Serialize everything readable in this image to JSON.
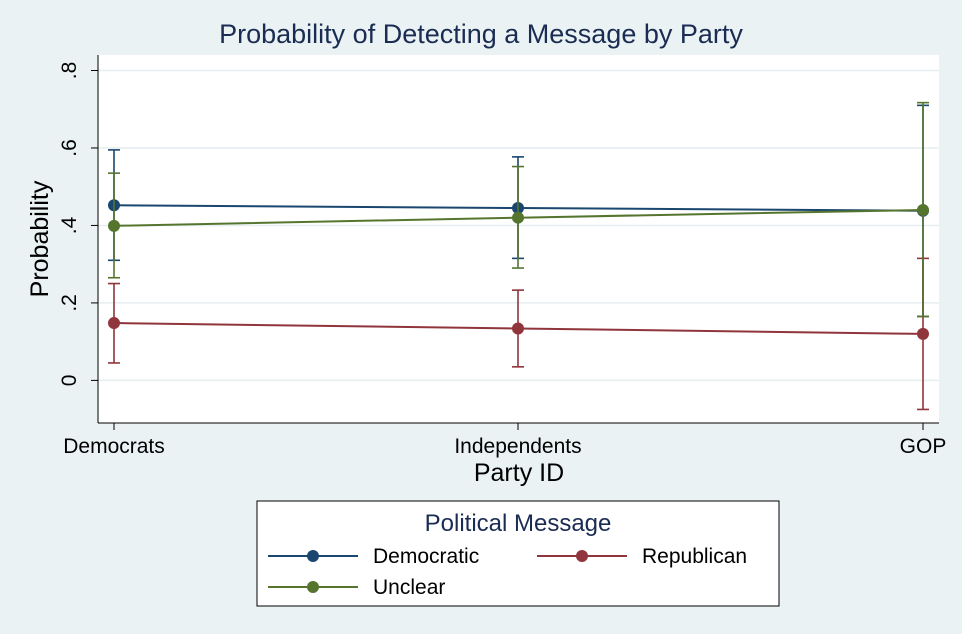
{
  "chart_data": {
    "type": "line",
    "title": "Probability of Detecting a Message by Party",
    "xlabel": "Party ID",
    "ylabel": "Probability",
    "categories": [
      "Democrats",
      "Independents",
      "GOP"
    ],
    "ylim": [
      -0.11,
      0.84
    ],
    "yticks": [
      0,
      0.2,
      0.4,
      0.6,
      0.8
    ],
    "ytick_labels": [
      "0",
      ".2",
      ".4",
      ".6",
      ".8"
    ],
    "grid": true,
    "error_bars": "confidence intervals",
    "legend_title": "Political Message",
    "legend_position": "bottom",
    "series": [
      {
        "name": "Democratic",
        "color": "#1a476f",
        "values": [
          0.452,
          0.445,
          0.438
        ],
        "lower": [
          0.31,
          0.315,
          0.165
        ],
        "upper": [
          0.595,
          0.577,
          0.71
        ]
      },
      {
        "name": "Republican",
        "color": "#90353b",
        "values": [
          0.148,
          0.134,
          0.12
        ],
        "lower": [
          0.045,
          0.035,
          -0.075
        ],
        "upper": [
          0.25,
          0.233,
          0.315
        ]
      },
      {
        "name": "Unclear",
        "color": "#55752f",
        "values": [
          0.399,
          0.42,
          0.44
        ],
        "lower": [
          0.265,
          0.29,
          0.165
        ],
        "upper": [
          0.535,
          0.552,
          0.717
        ]
      }
    ]
  }
}
